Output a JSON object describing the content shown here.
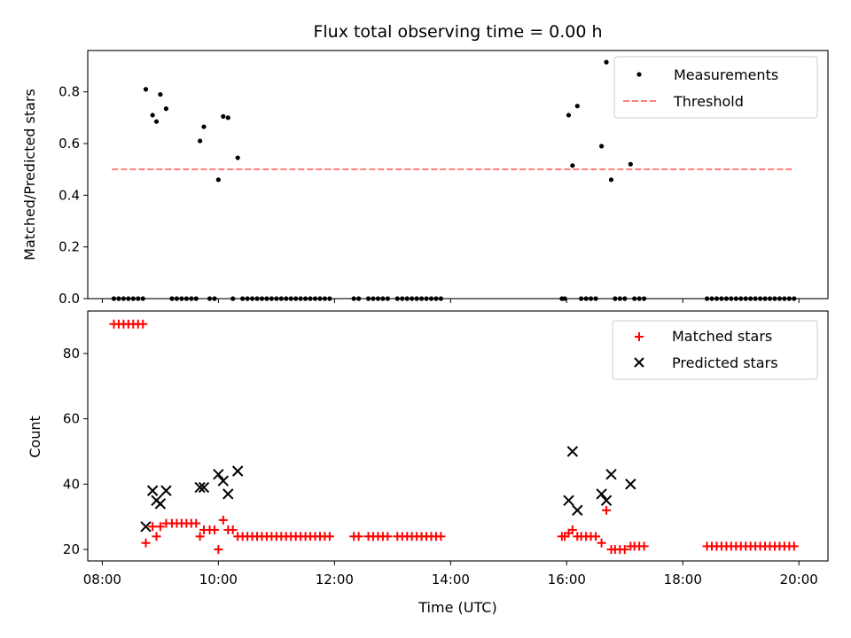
{
  "chart_data": [
    {
      "type": "scatter",
      "title": "Flux total observing time = 0.00 h",
      "xlabel": "",
      "ylabel": "Matched/Predicted stars",
      "xlim": [
        "07:45",
        "20:30"
      ],
      "ylim": [
        0,
        0.96
      ],
      "y_ticks": [
        0.0,
        0.2,
        0.4,
        0.6,
        0.8
      ],
      "y_tick_labels": [
        "0.0",
        "0.2",
        "0.4",
        "0.6",
        "0.8"
      ],
      "legend": {
        "position": "top-right",
        "entries": [
          "Measurements",
          "Threshold"
        ]
      },
      "threshold": {
        "name": "Threshold",
        "value": 0.5,
        "x_start": "08:10",
        "x_end": "19:55",
        "color": "#ff7f7f",
        "style": "dashed"
      },
      "series": [
        {
          "name": "Measurements",
          "marker": "dot",
          "color": "#000000",
          "points": [
            {
              "x": "08:12",
              "y": 0
            },
            {
              "x": "08:17",
              "y": 0
            },
            {
              "x": "08:22",
              "y": 0
            },
            {
              "x": "08:27",
              "y": 0
            },
            {
              "x": "08:32",
              "y": 0
            },
            {
              "x": "08:37",
              "y": 0
            },
            {
              "x": "08:42",
              "y": 0
            },
            {
              "x": "08:45",
              "y": 0.81
            },
            {
              "x": "08:52",
              "y": 0.71
            },
            {
              "x": "08:56",
              "y": 0.685
            },
            {
              "x": "09:00",
              "y": 0.79
            },
            {
              "x": "09:06",
              "y": 0.735
            },
            {
              "x": "09:12",
              "y": 0
            },
            {
              "x": "09:17",
              "y": 0
            },
            {
              "x": "09:22",
              "y": 0
            },
            {
              "x": "09:27",
              "y": 0
            },
            {
              "x": "09:32",
              "y": 0
            },
            {
              "x": "09:37",
              "y": 0
            },
            {
              "x": "09:41",
              "y": 0.61
            },
            {
              "x": "09:45",
              "y": 0.665
            },
            {
              "x": "09:51",
              "y": 0
            },
            {
              "x": "09:56",
              "y": 0
            },
            {
              "x": "10:00",
              "y": 0.46
            },
            {
              "x": "10:05",
              "y": 0.705
            },
            {
              "x": "10:10",
              "y": 0.7
            },
            {
              "x": "10:20",
              "y": 0.545
            },
            {
              "x": "10:15",
              "y": 0
            },
            {
              "x": "10:25",
              "y": 0
            },
            {
              "x": "10:30",
              "y": 0
            },
            {
              "x": "10:35",
              "y": 0
            },
            {
              "x": "10:40",
              "y": 0
            },
            {
              "x": "10:45",
              "y": 0
            },
            {
              "x": "10:50",
              "y": 0
            },
            {
              "x": "10:55",
              "y": 0
            },
            {
              "x": "11:00",
              "y": 0
            },
            {
              "x": "11:05",
              "y": 0
            },
            {
              "x": "11:10",
              "y": 0
            },
            {
              "x": "11:15",
              "y": 0
            },
            {
              "x": "11:20",
              "y": 0
            },
            {
              "x": "11:25",
              "y": 0
            },
            {
              "x": "11:30",
              "y": 0
            },
            {
              "x": "11:35",
              "y": 0
            },
            {
              "x": "11:40",
              "y": 0
            },
            {
              "x": "11:45",
              "y": 0
            },
            {
              "x": "11:50",
              "y": 0
            },
            {
              "x": "11:55",
              "y": 0
            },
            {
              "x": "12:20",
              "y": 0
            },
            {
              "x": "12:25",
              "y": 0
            },
            {
              "x": "12:35",
              "y": 0
            },
            {
              "x": "12:40",
              "y": 0
            },
            {
              "x": "12:45",
              "y": 0
            },
            {
              "x": "12:50",
              "y": 0
            },
            {
              "x": "12:55",
              "y": 0
            },
            {
              "x": "13:05",
              "y": 0
            },
            {
              "x": "13:10",
              "y": 0
            },
            {
              "x": "13:15",
              "y": 0
            },
            {
              "x": "13:20",
              "y": 0
            },
            {
              "x": "13:25",
              "y": 0
            },
            {
              "x": "13:30",
              "y": 0
            },
            {
              "x": "13:35",
              "y": 0
            },
            {
              "x": "13:40",
              "y": 0
            },
            {
              "x": "13:45",
              "y": 0
            },
            {
              "x": "13:50",
              "y": 0
            },
            {
              "x": "15:55",
              "y": 0
            },
            {
              "x": "15:58",
              "y": 0
            },
            {
              "x": "16:02",
              "y": 0.71
            },
            {
              "x": "16:06",
              "y": 0.515
            },
            {
              "x": "16:11",
              "y": 0.745
            },
            {
              "x": "16:15",
              "y": 0
            },
            {
              "x": "16:20",
              "y": 0
            },
            {
              "x": "16:25",
              "y": 0
            },
            {
              "x": "16:30",
              "y": 0
            },
            {
              "x": "16:36",
              "y": 0.59
            },
            {
              "x": "16:41",
              "y": 0.915
            },
            {
              "x": "16:46",
              "y": 0.46
            },
            {
              "x": "16:50",
              "y": 0
            },
            {
              "x": "16:55",
              "y": 0
            },
            {
              "x": "17:00",
              "y": 0
            },
            {
              "x": "17:06",
              "y": 0.52
            },
            {
              "x": "17:10",
              "y": 0
            },
            {
              "x": "17:15",
              "y": 0
            },
            {
              "x": "17:20",
              "y": 0
            },
            {
              "x": "18:25",
              "y": 0
            },
            {
              "x": "18:30",
              "y": 0
            },
            {
              "x": "18:35",
              "y": 0
            },
            {
              "x": "18:40",
              "y": 0
            },
            {
              "x": "18:45",
              "y": 0
            },
            {
              "x": "18:50",
              "y": 0
            },
            {
              "x": "18:55",
              "y": 0
            },
            {
              "x": "19:00",
              "y": 0
            },
            {
              "x": "19:05",
              "y": 0
            },
            {
              "x": "19:10",
              "y": 0
            },
            {
              "x": "19:15",
              "y": 0
            },
            {
              "x": "19:20",
              "y": 0
            },
            {
              "x": "19:25",
              "y": 0
            },
            {
              "x": "19:30",
              "y": 0
            },
            {
              "x": "19:35",
              "y": 0
            },
            {
              "x": "19:40",
              "y": 0
            },
            {
              "x": "19:45",
              "y": 0
            },
            {
              "x": "19:50",
              "y": 0
            },
            {
              "x": "19:55",
              "y": 0
            }
          ]
        }
      ]
    },
    {
      "type": "scatter",
      "title": "",
      "xlabel": "Time (UTC)",
      "ylabel": "Count",
      "xlim": [
        "07:45",
        "20:30"
      ],
      "ylim": [
        16.5,
        93
      ],
      "x_ticks": [
        "08:00",
        "10:00",
        "12:00",
        "14:00",
        "16:00",
        "18:00",
        "20:00"
      ],
      "x_tick_labels": [
        "08:00",
        "10:00",
        "12:00",
        "14:00",
        "16:00",
        "18:00",
        "20:00"
      ],
      "y_ticks": [
        20,
        40,
        60,
        80
      ],
      "y_tick_labels": [
        "20",
        "40",
        "60",
        "80"
      ],
      "legend": {
        "position": "top-right",
        "entries": [
          "Matched stars",
          "Predicted stars"
        ]
      },
      "series": [
        {
          "name": "Matched stars",
          "marker": "plus",
          "color": "#ff0000",
          "points": [
            {
              "x": "08:12",
              "y": 89
            },
            {
              "x": "08:17",
              "y": 89
            },
            {
              "x": "08:22",
              "y": 89
            },
            {
              "x": "08:27",
              "y": 89
            },
            {
              "x": "08:32",
              "y": 89
            },
            {
              "x": "08:37",
              "y": 89
            },
            {
              "x": "08:42",
              "y": 89
            },
            {
              "x": "08:45",
              "y": 22
            },
            {
              "x": "08:52",
              "y": 27
            },
            {
              "x": "08:56",
              "y": 24
            },
            {
              "x": "09:00",
              "y": 27
            },
            {
              "x": "09:06",
              "y": 28
            },
            {
              "x": "09:12",
              "y": 28
            },
            {
              "x": "09:17",
              "y": 28
            },
            {
              "x": "09:22",
              "y": 28
            },
            {
              "x": "09:27",
              "y": 28
            },
            {
              "x": "09:32",
              "y": 28
            },
            {
              "x": "09:37",
              "y": 28
            },
            {
              "x": "09:41",
              "y": 24
            },
            {
              "x": "09:45",
              "y": 26
            },
            {
              "x": "09:51",
              "y": 26
            },
            {
              "x": "09:56",
              "y": 26
            },
            {
              "x": "10:00",
              "y": 20
            },
            {
              "x": "10:05",
              "y": 29
            },
            {
              "x": "10:10",
              "y": 26
            },
            {
              "x": "10:15",
              "y": 26
            },
            {
              "x": "10:20",
              "y": 24
            },
            {
              "x": "10:25",
              "y": 24
            },
            {
              "x": "10:30",
              "y": 24
            },
            {
              "x": "10:35",
              "y": 24
            },
            {
              "x": "10:40",
              "y": 24
            },
            {
              "x": "10:45",
              "y": 24
            },
            {
              "x": "10:50",
              "y": 24
            },
            {
              "x": "10:55",
              "y": 24
            },
            {
              "x": "11:00",
              "y": 24
            },
            {
              "x": "11:05",
              "y": 24
            },
            {
              "x": "11:10",
              "y": 24
            },
            {
              "x": "11:15",
              "y": 24
            },
            {
              "x": "11:20",
              "y": 24
            },
            {
              "x": "11:25",
              "y": 24
            },
            {
              "x": "11:30",
              "y": 24
            },
            {
              "x": "11:35",
              "y": 24
            },
            {
              "x": "11:40",
              "y": 24
            },
            {
              "x": "11:45",
              "y": 24
            },
            {
              "x": "11:50",
              "y": 24
            },
            {
              "x": "11:55",
              "y": 24
            },
            {
              "x": "12:20",
              "y": 24
            },
            {
              "x": "12:25",
              "y": 24
            },
            {
              "x": "12:35",
              "y": 24
            },
            {
              "x": "12:40",
              "y": 24
            },
            {
              "x": "12:45",
              "y": 24
            },
            {
              "x": "12:50",
              "y": 24
            },
            {
              "x": "12:55",
              "y": 24
            },
            {
              "x": "13:05",
              "y": 24
            },
            {
              "x": "13:10",
              "y": 24
            },
            {
              "x": "13:15",
              "y": 24
            },
            {
              "x": "13:20",
              "y": 24
            },
            {
              "x": "13:25",
              "y": 24
            },
            {
              "x": "13:30",
              "y": 24
            },
            {
              "x": "13:35",
              "y": 24
            },
            {
              "x": "13:40",
              "y": 24
            },
            {
              "x": "13:45",
              "y": 24
            },
            {
              "x": "13:50",
              "y": 24
            },
            {
              "x": "15:55",
              "y": 24
            },
            {
              "x": "15:58",
              "y": 24
            },
            {
              "x": "16:02",
              "y": 25
            },
            {
              "x": "16:06",
              "y": 26
            },
            {
              "x": "16:11",
              "y": 24
            },
            {
              "x": "16:15",
              "y": 24
            },
            {
              "x": "16:20",
              "y": 24
            },
            {
              "x": "16:25",
              "y": 24
            },
            {
              "x": "16:30",
              "y": 24
            },
            {
              "x": "16:36",
              "y": 22
            },
            {
              "x": "16:41",
              "y": 32
            },
            {
              "x": "16:46",
              "y": 20
            },
            {
              "x": "16:50",
              "y": 20
            },
            {
              "x": "16:55",
              "y": 20
            },
            {
              "x": "17:00",
              "y": 20
            },
            {
              "x": "17:06",
              "y": 21
            },
            {
              "x": "17:10",
              "y": 21
            },
            {
              "x": "17:15",
              "y": 21
            },
            {
              "x": "17:20",
              "y": 21
            },
            {
              "x": "18:25",
              "y": 21
            },
            {
              "x": "18:30",
              "y": 21
            },
            {
              "x": "18:35",
              "y": 21
            },
            {
              "x": "18:40",
              "y": 21
            },
            {
              "x": "18:45",
              "y": 21
            },
            {
              "x": "18:50",
              "y": 21
            },
            {
              "x": "18:55",
              "y": 21
            },
            {
              "x": "19:00",
              "y": 21
            },
            {
              "x": "19:05",
              "y": 21
            },
            {
              "x": "19:10",
              "y": 21
            },
            {
              "x": "19:15",
              "y": 21
            },
            {
              "x": "19:20",
              "y": 21
            },
            {
              "x": "19:25",
              "y": 21
            },
            {
              "x": "19:30",
              "y": 21
            },
            {
              "x": "19:35",
              "y": 21
            },
            {
              "x": "19:40",
              "y": 21
            },
            {
              "x": "19:45",
              "y": 21
            },
            {
              "x": "19:50",
              "y": 21
            },
            {
              "x": "19:55",
              "y": 21
            }
          ]
        },
        {
          "name": "Predicted stars",
          "marker": "x",
          "color": "#000000",
          "points": [
            {
              "x": "08:45",
              "y": 27
            },
            {
              "x": "08:52",
              "y": 38
            },
            {
              "x": "08:56",
              "y": 35
            },
            {
              "x": "09:00",
              "y": 34
            },
            {
              "x": "09:06",
              "y": 38
            },
            {
              "x": "09:41",
              "y": 39
            },
            {
              "x": "09:45",
              "y": 39
            },
            {
              "x": "10:00",
              "y": 43
            },
            {
              "x": "10:05",
              "y": 41
            },
            {
              "x": "10:10",
              "y": 37
            },
            {
              "x": "10:20",
              "y": 44
            },
            {
              "x": "16:02",
              "y": 35
            },
            {
              "x": "16:06",
              "y": 50
            },
            {
              "x": "16:11",
              "y": 32
            },
            {
              "x": "16:36",
              "y": 37
            },
            {
              "x": "16:41",
              "y": 35
            },
            {
              "x": "16:46",
              "y": 43
            },
            {
              "x": "17:06",
              "y": 40
            }
          ]
        }
      ]
    }
  ]
}
